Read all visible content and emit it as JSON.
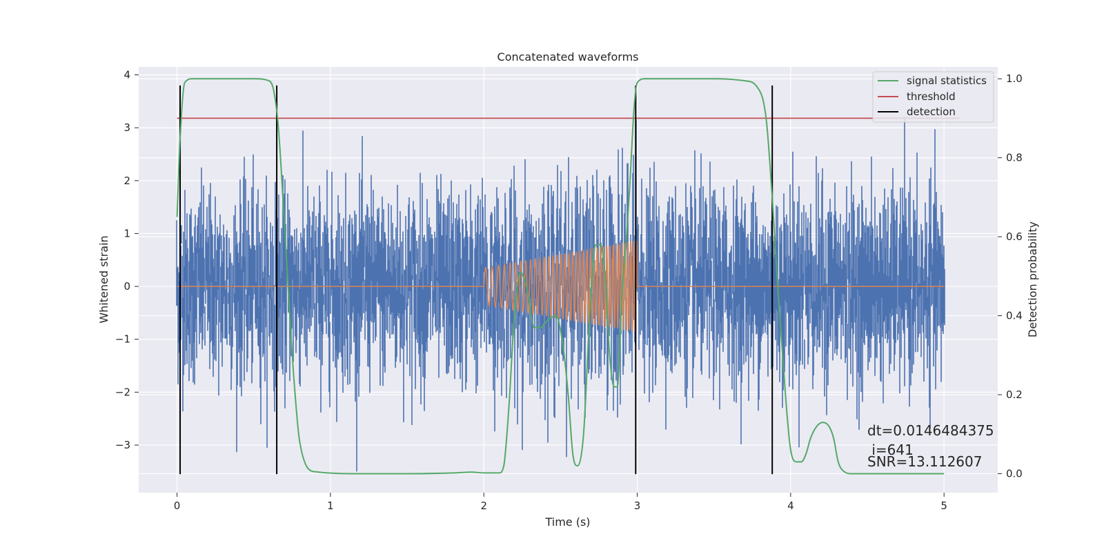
{
  "chart_data": {
    "type": "line",
    "title": "Concatenated waveforms",
    "xlabel": "Time (s)",
    "ylabel": "Whitened strain",
    "y2label": "Detection probability",
    "xlim": [
      -0.25,
      5.35
    ],
    "ylim": [
      -3.9,
      4.15
    ],
    "y2lim": [
      -0.048,
      1.03
    ],
    "xticks": [
      0,
      1,
      2,
      3,
      4,
      5
    ],
    "yticks": [
      -3,
      -2,
      -1,
      0,
      1,
      2,
      3,
      4
    ],
    "y2ticks": [
      0.0,
      0.2,
      0.4,
      0.6,
      0.8,
      1.0
    ],
    "y2ticklabels": [
      "0.0",
      "0.2",
      "0.4",
      "0.6",
      "0.8",
      "1.0"
    ],
    "grid": true,
    "legend_position": "top-right",
    "legend": [
      {
        "label": "signal statistics",
        "color": "#55a868"
      },
      {
        "label": "threshold",
        "color": "#c44e52"
      },
      {
        "label": "detection",
        "color": "#000000"
      }
    ],
    "strain": {
      "color": "#4c72b0",
      "x_range": [
        0,
        5
      ],
      "sigma": 0.9,
      "amplitude_range": [
        -3.5,
        3.75
      ]
    },
    "injected_waveform": {
      "color": "#dd8452",
      "x_range": [
        0,
        5
      ],
      "chirp_start": 2.0,
      "chirp_end": 3.0,
      "amplitude_start": 0.35,
      "amplitude_end": 0.88,
      "freq_start_hz": 22,
      "freq_end_hz": 55
    },
    "threshold": {
      "x": [
        0,
        5.1
      ],
      "y": 0.9,
      "axis": "right"
    },
    "signal_statistics": {
      "axis": "right",
      "x": [
        0.0,
        0.02,
        0.05,
        0.1,
        0.2,
        0.5,
        0.6,
        0.63,
        0.66,
        0.69,
        0.72,
        0.76,
        0.8,
        0.9,
        1.2,
        1.5,
        1.8,
        1.92,
        2.0,
        2.1,
        2.13,
        2.16,
        2.2,
        2.24,
        2.28,
        2.33,
        2.37,
        2.42,
        2.47,
        2.51,
        2.55,
        2.58,
        2.61,
        2.65,
        2.69,
        2.73,
        2.76,
        2.79,
        2.82,
        2.85,
        2.87,
        2.9,
        2.93,
        2.95,
        2.98,
        3.0,
        3.05,
        3.1,
        3.5,
        3.7,
        3.78,
        3.84,
        3.88,
        3.92,
        3.97,
        4.0,
        4.04,
        4.07,
        4.1,
        4.13,
        4.17,
        4.21,
        4.25,
        4.28,
        4.31,
        4.35,
        4.4,
        4.5,
        5.0
      ],
      "y": [
        0.65,
        0.85,
        0.99,
        1.0,
        1.0,
        1.0,
        0.995,
        0.97,
        0.88,
        0.7,
        0.5,
        0.25,
        0.08,
        0.005,
        0.0,
        0.0,
        0.002,
        0.004,
        0.002,
        0.002,
        0.02,
        0.15,
        0.4,
        0.51,
        0.47,
        0.37,
        0.37,
        0.39,
        0.4,
        0.34,
        0.2,
        0.05,
        0.02,
        0.1,
        0.4,
        0.58,
        0.58,
        0.5,
        0.3,
        0.22,
        0.22,
        0.45,
        0.6,
        0.72,
        0.93,
        0.99,
        1.0,
        1.0,
        1.0,
        0.995,
        0.98,
        0.9,
        0.7,
        0.45,
        0.18,
        0.06,
        0.03,
        0.03,
        0.05,
        0.09,
        0.12,
        0.13,
        0.12,
        0.09,
        0.03,
        0.005,
        0.0,
        0.0,
        0.0
      ]
    },
    "detections": [
      0.02,
      0.65,
      2.99,
      3.88
    ],
    "annotations": {
      "dt": "dt=0.0146484375",
      "i": " i=641",
      "snr": "SNR=13.112607"
    }
  }
}
